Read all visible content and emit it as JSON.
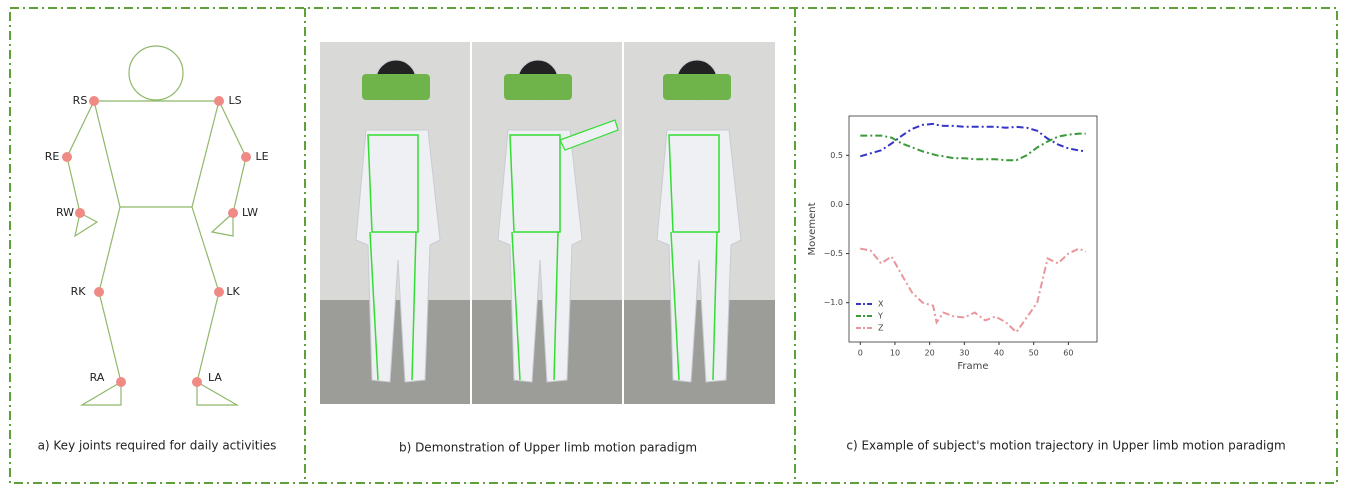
{
  "panel_a": {
    "joints": [
      "RS",
      "LS",
      "RE",
      "LE",
      "RW",
      "LW",
      "RK",
      "LK",
      "RA",
      "LA"
    ],
    "caption": "a)  Key joints required for daily activities"
  },
  "panel_b": {
    "caption": "b)  Demonstration of Upper limb motion paradigm"
  },
  "chart_data": {
    "type": "line",
    "caption": "c) Example of subject's motion trajectory in Upper limb motion paradigm",
    "x_label": "Frame",
    "y_label": "Movement",
    "x": [
      0,
      3,
      6,
      9,
      12,
      15,
      18,
      21,
      22,
      24,
      27,
      30,
      33,
      36,
      39,
      42,
      45,
      48,
      51,
      54,
      57,
      60,
      63,
      65
    ],
    "series": [
      {
        "name": "X",
        "color": "#3535c8",
        "values": [
          0.49,
          0.52,
          0.55,
          0.62,
          0.7,
          0.77,
          0.81,
          0.82,
          0.81,
          0.8,
          0.8,
          0.79,
          0.79,
          0.79,
          0.79,
          0.78,
          0.79,
          0.78,
          0.75,
          0.67,
          0.61,
          0.57,
          0.55,
          0.54
        ]
      },
      {
        "name": "Y",
        "color": "#3a9a3a",
        "values": [
          0.7,
          0.7,
          0.7,
          0.68,
          0.62,
          0.58,
          0.54,
          0.51,
          0.5,
          0.49,
          0.47,
          0.47,
          0.46,
          0.46,
          0.46,
          0.45,
          0.45,
          0.5,
          0.58,
          0.64,
          0.69,
          0.71,
          0.72,
          0.72
        ]
      },
      {
        "name": "Z",
        "color": "#e8969c",
        "values": [
          -0.45,
          -0.47,
          -0.6,
          -0.53,
          -0.72,
          -0.9,
          -1.0,
          -1.03,
          -1.2,
          -1.1,
          -1.14,
          -1.15,
          -1.1,
          -1.18,
          -1.14,
          -1.2,
          -1.3,
          -1.15,
          -1.0,
          -0.55,
          -0.6,
          -0.5,
          -0.45,
          -0.48
        ]
      }
    ],
    "xlim": [
      -3.25,
      68.25
    ],
    "xticks": [
      0,
      10,
      20,
      30,
      40,
      50,
      60
    ],
    "ylim": [
      -1.4,
      0.9
    ],
    "yticks": [
      0.5,
      {
        "value": 0,
        "label": "0.0"
      },
      {
        "value": -0.5,
        "label": "−0.5"
      },
      {
        "value": -1,
        "label": "−1.0"
      }
    ],
    "legend": "lower left"
  }
}
